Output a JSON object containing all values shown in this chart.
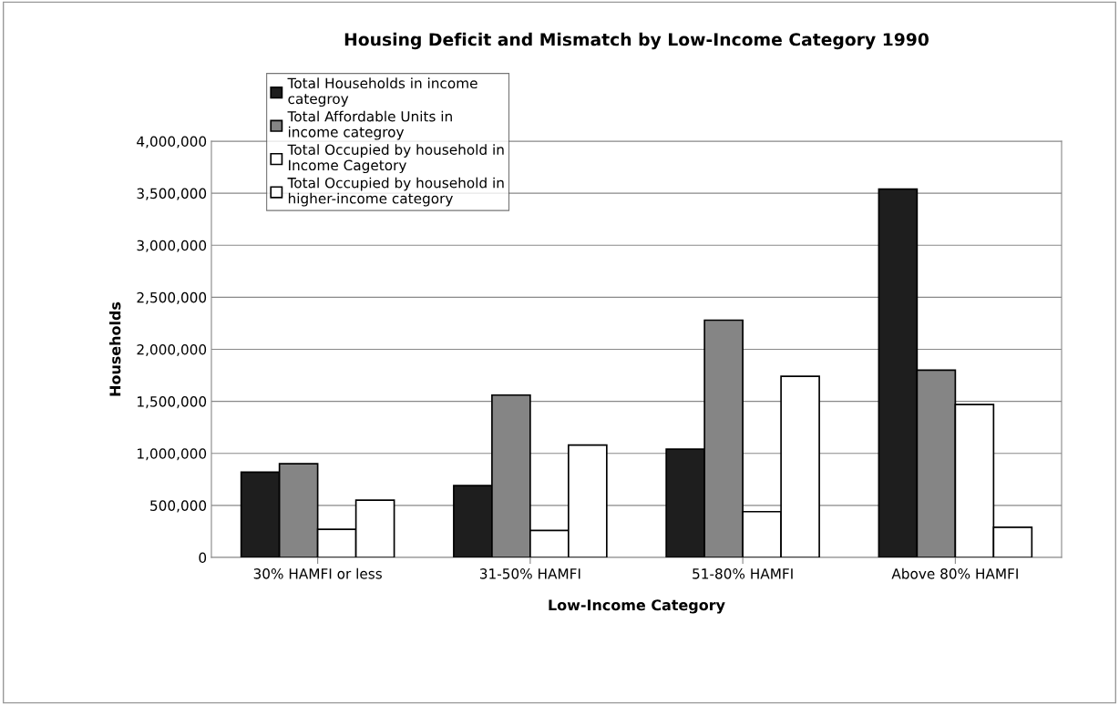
{
  "chart_data": {
    "type": "bar",
    "title": "Housing Deficit and Mismatch by Low-Income Category 1990",
    "xlabel": "Low-Income Category",
    "ylabel": "Households",
    "categories": [
      "30% HAMFI or less",
      "31-50% HAMFI",
      "51-80% HAMFI",
      "Above 80% HAMFI"
    ],
    "series": [
      {
        "name": "Total Households in income categroy",
        "color": "#1e1e1e",
        "values": [
          820000,
          690000,
          1040000,
          3540000
        ]
      },
      {
        "name": "Total Affordable Units in income categroy",
        "color": "#858585",
        "values": [
          900000,
          1560000,
          2280000,
          1800000
        ]
      },
      {
        "name": "Total Occupied by household in Income Cagetory",
        "color": "#ffffff",
        "values": [
          270000,
          260000,
          440000,
          1470000
        ]
      },
      {
        "name": "Total Occupied by household in higher-income category",
        "color": "#ffffff",
        "values": [
          550000,
          1080000,
          1740000,
          290000
        ]
      }
    ],
    "ylim": [
      0,
      4000000
    ],
    "yticks": [
      {
        "value": 0,
        "label": "0"
      },
      {
        "value": 500000,
        "label": "500,000"
      },
      {
        "value": 1000000,
        "label": "1,000,000"
      },
      {
        "value": 1500000,
        "label": "1,500,000"
      },
      {
        "value": 2000000,
        "label": "2,000,000"
      },
      {
        "value": 2500000,
        "label": "2,500,000"
      },
      {
        "value": 3000000,
        "label": "3,000,000"
      },
      {
        "value": 3500000,
        "label": "3,500,000"
      },
      {
        "value": 4000000,
        "label": "4,000,000"
      }
    ],
    "grid": "y",
    "legend": "top left"
  }
}
